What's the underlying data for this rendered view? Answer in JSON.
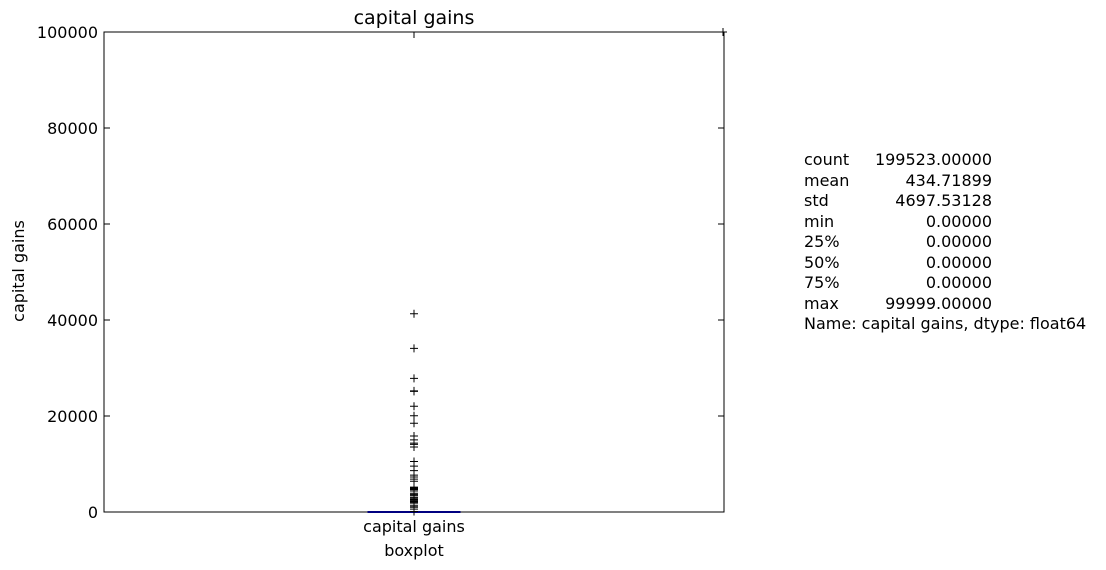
{
  "chart_data": {
    "type": "box",
    "title": "capital gains",
    "xlabel": "boxplot",
    "ylabel": "capital gains",
    "categories": [
      "capital gains"
    ],
    "ylim": [
      0,
      100000
    ],
    "yticks": [
      0,
      20000,
      40000,
      60000,
      80000,
      100000
    ],
    "ytick_labels": [
      "0",
      "20000",
      "40000",
      "60000",
      "80000",
      "100000"
    ],
    "box": {
      "q1": 0,
      "median": 0,
      "q3": 0,
      "whisker_low": 0,
      "whisker_high": 0
    },
    "outliers": [
      99999,
      41310,
      34095,
      27828,
      25236,
      25124,
      22040,
      20051,
      18481,
      15831,
      15024,
      14344,
      14084,
      13550,
      10520,
      9562,
      8614,
      7688,
      7298,
      6849,
      6418,
      5178,
      5013,
      4787,
      4650,
      4386,
      3908,
      3674,
      3464,
      3103,
      2885,
      2653,
      2538,
      2329,
      2176,
      2036,
      1848,
      1409,
      1086,
      991,
      594,
      114
    ],
    "colors": {
      "median": "#ff0000",
      "box": "#0000ff",
      "flier": "#000000"
    }
  },
  "stats_text": {
    "lines": [
      {
        "key": "count",
        "value": "199523.00000"
      },
      {
        "key": "mean",
        "value": "434.71899"
      },
      {
        "key": "std",
        "value": "4697.53128"
      },
      {
        "key": "min",
        "value": "0.00000"
      },
      {
        "key": "25%",
        "value": "0.00000"
      },
      {
        "key": "50%",
        "value": "0.00000"
      },
      {
        "key": "75%",
        "value": "0.00000"
      },
      {
        "key": "max",
        "value": "99999.00000"
      }
    ],
    "footer": "Name: capital gains, dtype: float64"
  }
}
